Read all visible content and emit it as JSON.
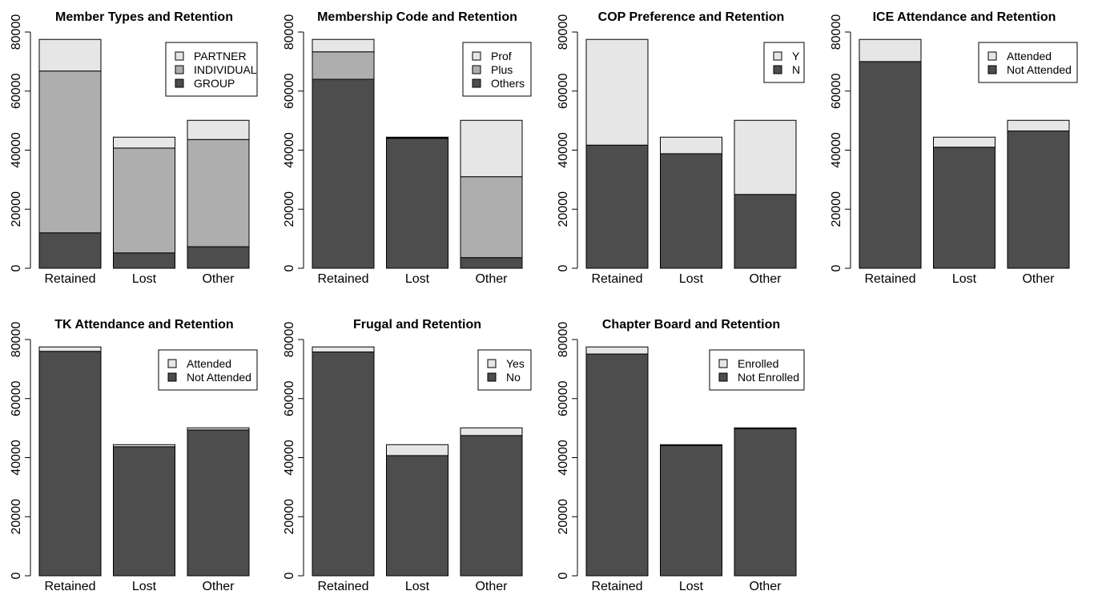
{
  "chart_data": [
    {
      "type": "bar",
      "title": "Member Types and Retention",
      "categories": [
        "Retained",
        "Lost",
        "Other"
      ],
      "ylim": [
        0,
        80000
      ],
      "yticks": [
        0,
        20000,
        40000,
        60000,
        80000
      ],
      "legend_position": "top-right",
      "series": [
        {
          "name": "GROUP",
          "color": "#4d4d4d",
          "values": [
            12000,
            5200,
            7300
          ]
        },
        {
          "name": "INDIVIDUAL",
          "color": "#aeaeae",
          "values": [
            54800,
            35500,
            36300
          ]
        },
        {
          "name": "PARTNER",
          "color": "#e6e6e6",
          "values": [
            10700,
            3700,
            6500
          ]
        }
      ]
    },
    {
      "type": "bar",
      "title": "Membership Code and Retention",
      "categories": [
        "Retained",
        "Lost",
        "Other"
      ],
      "ylim": [
        0,
        80000
      ],
      "yticks": [
        0,
        20000,
        40000,
        60000,
        80000
      ],
      "legend_position": "top-right",
      "series": [
        {
          "name": "Others",
          "color": "#4d4d4d",
          "values": [
            64000,
            44000,
            3600
          ]
        },
        {
          "name": "Plus",
          "color": "#aeaeae",
          "values": [
            9300,
            200,
            27400
          ]
        },
        {
          "name": "Prof",
          "color": "#e6e6e6",
          "values": [
            4200,
            200,
            19100
          ]
        }
      ]
    },
    {
      "type": "bar",
      "title": "COP Preference and Retention",
      "categories": [
        "Retained",
        "Lost",
        "Other"
      ],
      "ylim": [
        0,
        80000
      ],
      "yticks": [
        0,
        20000,
        40000,
        60000,
        80000
      ],
      "legend_position": "top-right",
      "series": [
        {
          "name": "N",
          "color": "#4d4d4d",
          "values": [
            41700,
            38800,
            25000
          ]
        },
        {
          "name": "Y",
          "color": "#e6e6e6",
          "values": [
            35800,
            5600,
            25100
          ]
        }
      ]
    },
    {
      "type": "bar",
      "title": "ICE Attendance and Retention",
      "categories": [
        "Retained",
        "Lost",
        "Other"
      ],
      "ylim": [
        0,
        80000
      ],
      "yticks": [
        0,
        20000,
        40000,
        60000,
        80000
      ],
      "legend_position": "top-right",
      "series": [
        {
          "name": "Not Attended",
          "color": "#4d4d4d",
          "values": [
            70000,
            41000,
            46500
          ]
        },
        {
          "name": "Attended",
          "color": "#e6e6e6",
          "values": [
            7500,
            3400,
            3600
          ]
        }
      ]
    },
    {
      "type": "bar",
      "title": "TK Attendance and Retention",
      "categories": [
        "Retained",
        "Lost",
        "Other"
      ],
      "ylim": [
        0,
        80000
      ],
      "yticks": [
        0,
        20000,
        40000,
        60000,
        80000
      ],
      "legend_position": "top-right",
      "series": [
        {
          "name": "Not Attended",
          "color": "#4d4d4d",
          "values": [
            76000,
            43700,
            49400
          ]
        },
        {
          "name": "Attended",
          "color": "#e6e6e6",
          "values": [
            1500,
            700,
            700
          ]
        }
      ]
    },
    {
      "type": "bar",
      "title": "Frugal and Retention",
      "categories": [
        "Retained",
        "Lost",
        "Other"
      ],
      "ylim": [
        0,
        80000
      ],
      "yticks": [
        0,
        20000,
        40000,
        60000,
        80000
      ],
      "legend_position": "top-right",
      "series": [
        {
          "name": "No",
          "color": "#4d4d4d",
          "values": [
            75800,
            40700,
            47500
          ]
        },
        {
          "name": "Yes",
          "color": "#e6e6e6",
          "values": [
            1700,
            3700,
            2600
          ]
        }
      ]
    },
    {
      "type": "bar",
      "title": "Chapter Board and Retention",
      "categories": [
        "Retained",
        "Lost",
        "Other"
      ],
      "ylim": [
        0,
        80000
      ],
      "yticks": [
        0,
        20000,
        40000,
        60000,
        80000
      ],
      "legend_position": "top-right",
      "series": [
        {
          "name": "Not Enrolled",
          "color": "#4d4d4d",
          "values": [
            75100,
            44100,
            49800
          ]
        },
        {
          "name": "Enrolled",
          "color": "#e6e6e6",
          "values": [
            2400,
            300,
            300
          ]
        }
      ]
    }
  ]
}
